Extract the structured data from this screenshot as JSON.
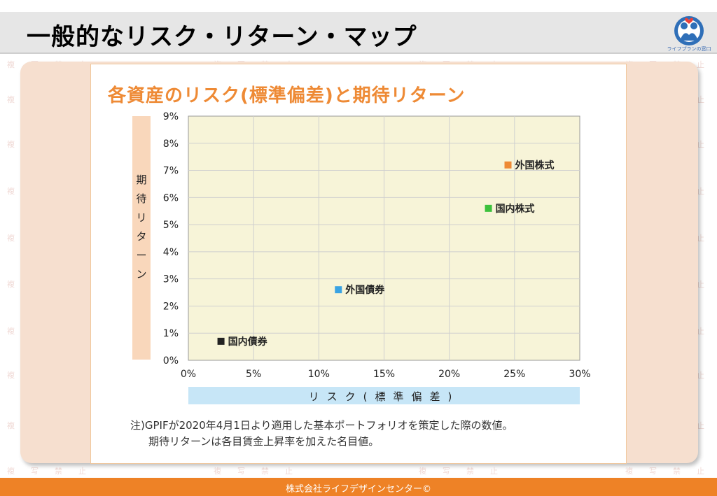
{
  "header": {
    "title": "一般的なリスク・リターン・マップ",
    "logo_text": "ライフプランの窓口"
  },
  "watermark": [
    "複",
    "写",
    "禁",
    "止"
  ],
  "chart_data": {
    "type": "scatter",
    "title": "各資産のリスク(標準偏差)と期待リターン",
    "xlabel": "リスク(標準偏差)",
    "ylabel": "期待リターン",
    "xlim": [
      0,
      30
    ],
    "ylim": [
      0,
      9
    ],
    "x_ticks": [
      "0%",
      "5%",
      "10%",
      "15%",
      "20%",
      "25%",
      "30%"
    ],
    "y_ticks": [
      "0%",
      "1%",
      "2%",
      "3%",
      "4%",
      "5%",
      "6%",
      "7%",
      "8%",
      "9%"
    ],
    "grid": true,
    "points": [
      {
        "label": "国内債券",
        "x": 2.5,
        "y": 0.7,
        "color": "#222222"
      },
      {
        "label": "外国債券",
        "x": 11.5,
        "y": 2.6,
        "color": "#3aa3e3"
      },
      {
        "label": "国内株式",
        "x": 23.0,
        "y": 5.6,
        "color": "#3cc13c"
      },
      {
        "label": "外国株式",
        "x": 24.5,
        "y": 7.2,
        "color": "#ee8a35"
      }
    ]
  },
  "note": {
    "line1": "注)GPIFが2020年4月1日より適用した基本ポートフォリオを策定した際の数値。",
    "line2": "期待リターンは各目賃金上昇率を加えた名目値。"
  },
  "footer": {
    "text": "株式会社ライフデザインセンター©"
  }
}
